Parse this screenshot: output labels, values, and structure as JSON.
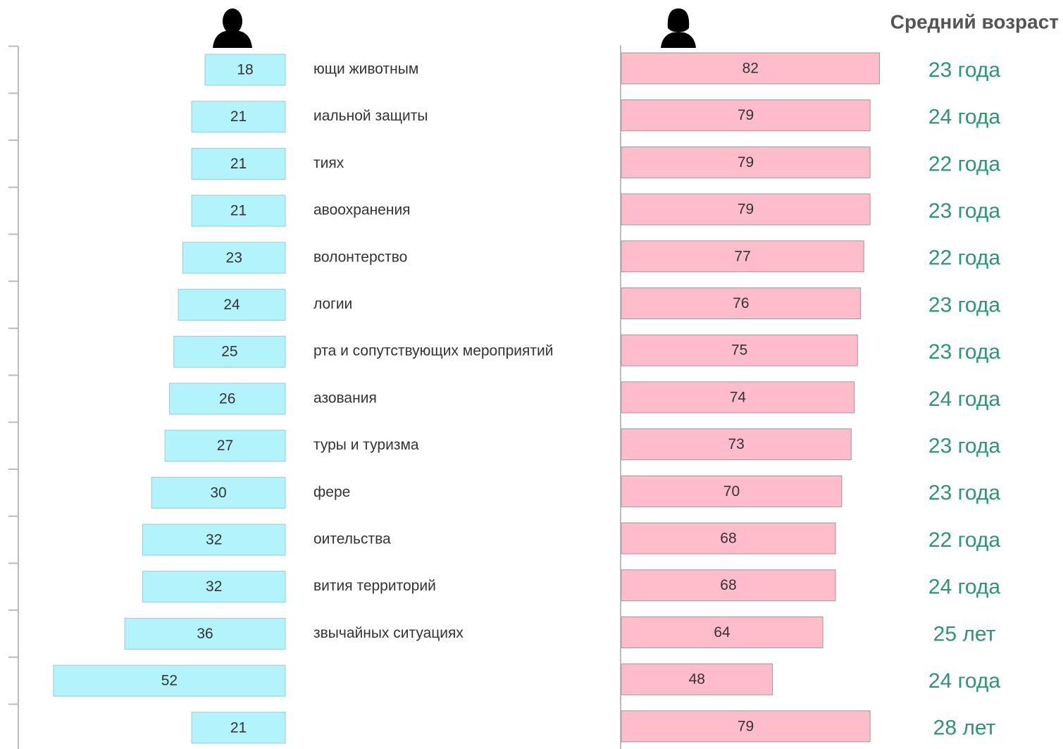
{
  "chart_data": {
    "type": "bar",
    "orientation": "horizontal",
    "categories": [
      "ющи животным",
      "иальной защиты",
      "тиях",
      "авоохранения",
      "волонтерство",
      "логии",
      "рта и сопутствующих мероприятий",
      "азования",
      "туры и туризма",
      "фере",
      "оительства",
      "вития территорий",
      "звычайных ситуациях",
      null,
      null
    ],
    "series": [
      {
        "color": "#b3f3fb",
        "values": [
          18,
          21,
          21,
          21,
          23,
          24,
          25,
          26,
          27,
          30,
          32,
          32,
          36,
          52,
          21
        ]
      },
      {
        "color": "#ffbccb",
        "values": [
          82,
          79,
          79,
          79,
          77,
          76,
          75,
          74,
          73,
          70,
          68,
          68,
          64,
          48,
          79
        ]
      }
    ],
    "annotation_title": "Средний возраст",
    "annotations": [
      "23 года",
      "24 года",
      "22 года",
      "23 года",
      "22 года",
      "23 года",
      "23 года",
      "24 года",
      "23 года",
      "23 года",
      "22 года",
      "24 года",
      "25 лет",
      "24 года",
      "28 лет"
    ]
  }
}
